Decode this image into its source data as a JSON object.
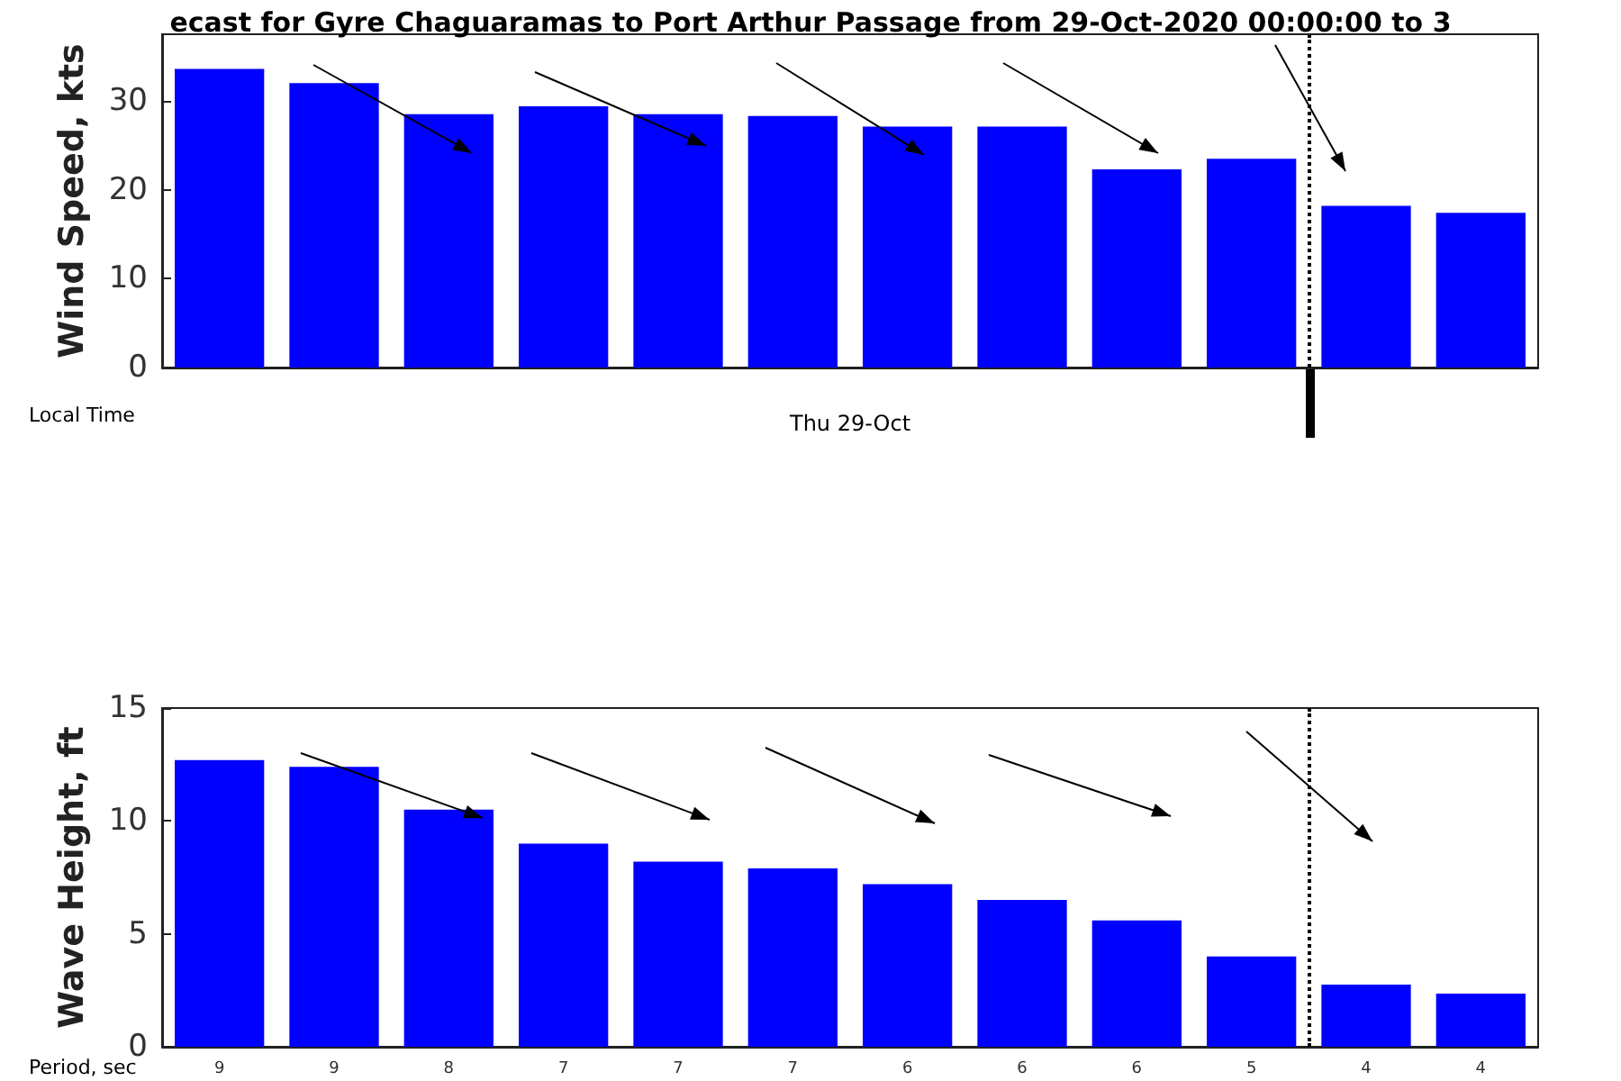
{
  "chart_data": [
    {
      "type": "bar",
      "title": "ecast for Gyre Chaguaramas to Port Arthur Passage from 29-Oct-2020 00:00:00 to 3",
      "ylabel": "Wind Speed, kts",
      "xlabel": "Thu 29-Oct",
      "annotations": [
        "Local Time"
      ],
      "categories": [
        null,
        null,
        null,
        null,
        null,
        null,
        null,
        null,
        null,
        null,
        null,
        null
      ],
      "values": [
        33.6,
        32.0,
        28.5,
        29.4,
        28.5,
        28.3,
        27.1,
        27.1,
        22.3,
        23.5,
        18.2,
        17.4
      ],
      "color": "#0000ff",
      "ylim": [
        0,
        37.5
      ],
      "yticks": [
        0,
        10,
        20,
        30
      ]
    },
    {
      "type": "bar",
      "ylabel": "Wave Height, ft",
      "annotations": [
        "Period, sec"
      ],
      "categories": [
        "9",
        "9",
        "8",
        "7",
        "7",
        "7",
        "6",
        "6",
        "6",
        "5",
        "4",
        "4"
      ],
      "values": [
        12.7,
        12.4,
        10.5,
        9.0,
        8.2,
        7.9,
        7.2,
        6.5,
        5.6,
        4.0,
        2.75,
        2.35
      ],
      "color": "#0000ff",
      "ylim": [
        0,
        15
      ],
      "yticks": [
        0,
        5,
        10,
        15
      ]
    }
  ]
}
